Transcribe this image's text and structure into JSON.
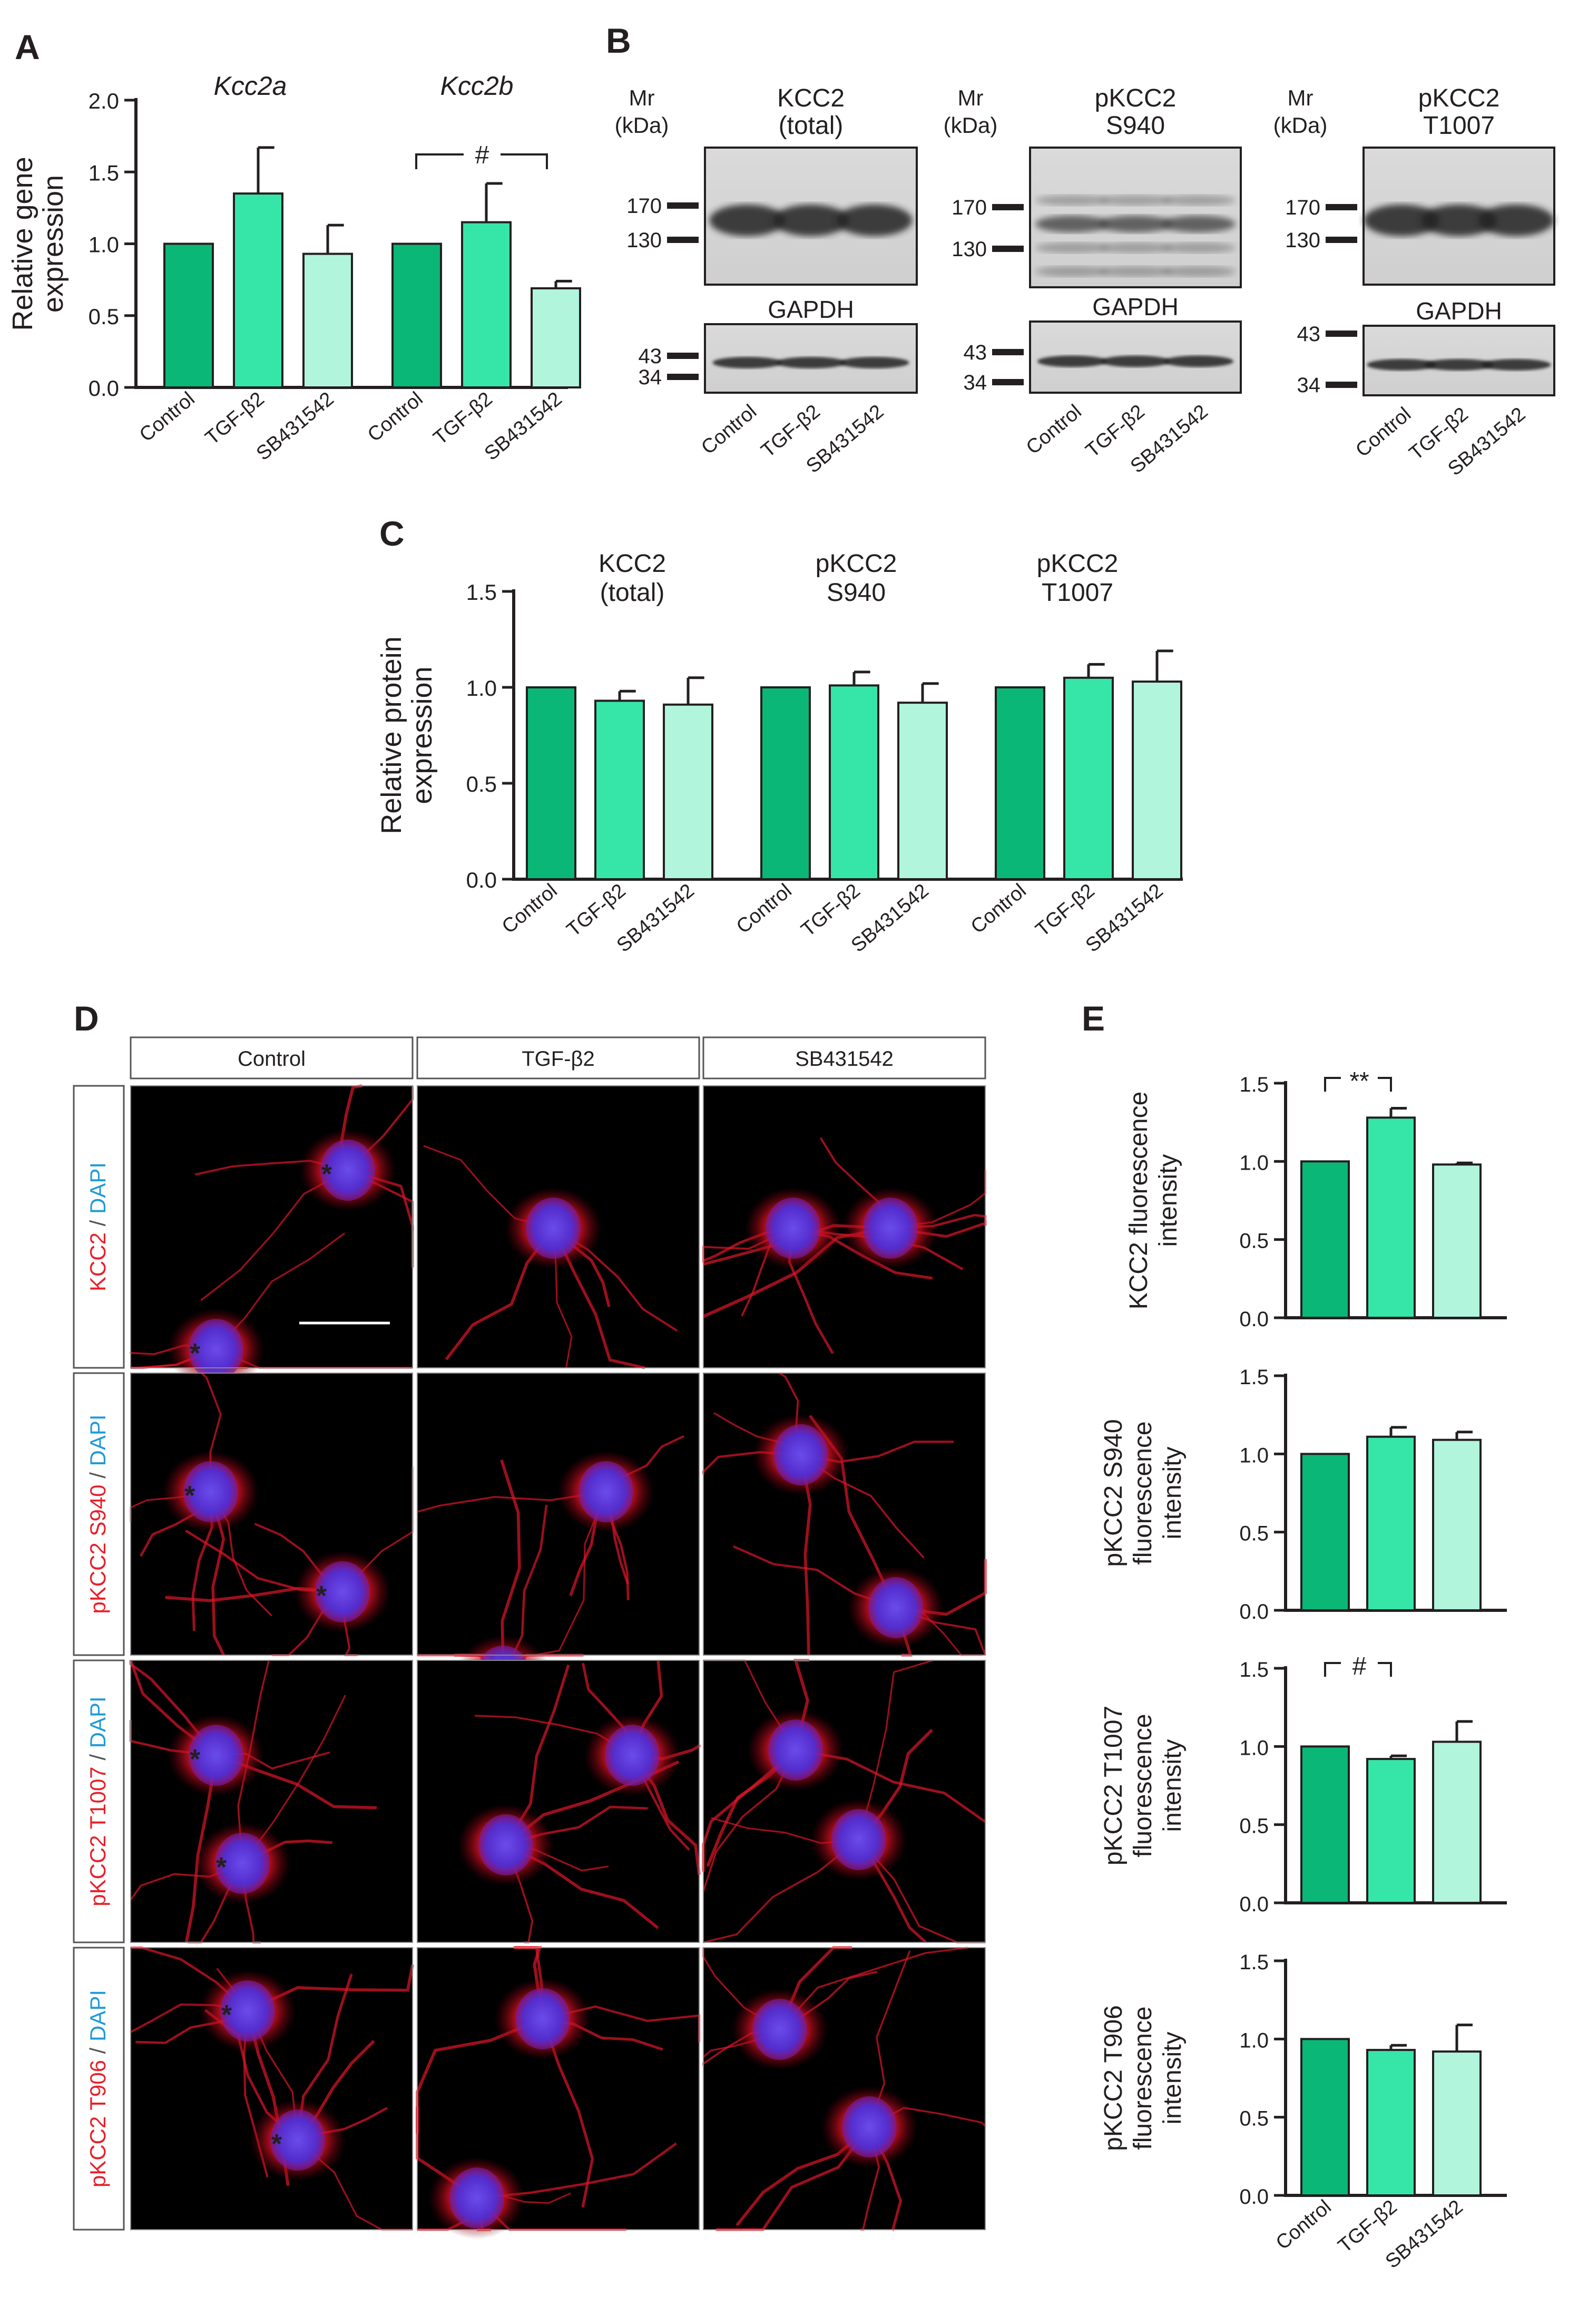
{
  "colors": {
    "control": "#0ab777",
    "tgf": "#36e6a9",
    "sb": "#b0f5dc",
    "kcc2_text": "#e8202a",
    "dapi_text": "#1f9bd7",
    "cell_red": "#e0162a",
    "cell_blue": "#3a3dff"
  },
  "panels": {
    "A": {
      "letter": "A",
      "groups": [
        "Kcc2a",
        "Kcc2b"
      ],
      "annotation": "#"
    },
    "B": {
      "letter": "B",
      "blots": [
        {
          "mr_label": [
            "Mr",
            "(kDa)"
          ],
          "title": [
            "KCC2",
            "(total)"
          ],
          "upper_markers": [
            "170",
            "130"
          ],
          "loading_label": "GAPDH",
          "lower_markers": [
            "43",
            "34"
          ],
          "lanes": [
            "Control",
            "TGF-β2",
            "SB431542"
          ]
        },
        {
          "mr_label": [
            "Mr",
            "(kDa)"
          ],
          "title": [
            "pKCC2",
            "S940"
          ],
          "upper_markers": [
            "170",
            "130"
          ],
          "loading_label": "GAPDH",
          "lower_markers": [
            "43",
            "34"
          ],
          "lanes": [
            "Control",
            "TGF-β2",
            "SB431542"
          ]
        },
        {
          "mr_label": [
            "Mr",
            "(kDa)"
          ],
          "title": [
            "pKCC2",
            "T1007"
          ],
          "upper_markers": [
            "170",
            "130"
          ],
          "loading_label": "GAPDH",
          "lower_markers": [
            "43",
            "34"
          ],
          "lanes": [
            "Control",
            "TGF-β2",
            "SB431542"
          ]
        }
      ]
    },
    "C": {
      "letter": "C",
      "group_titles": [
        [
          "KCC2",
          "(total)"
        ],
        [
          "pKCC2",
          "S940"
        ],
        [
          "pKCC2",
          "T1007"
        ]
      ]
    },
    "D": {
      "letter": "D",
      "columns": [
        "Control",
        "TGF-β2",
        "SB431542"
      ],
      "rows": [
        {
          "marker": "KCC2",
          "sep": " / ",
          "stain": "DAPI"
        },
        {
          "marker": "pKCC2 S940",
          "sep": " / ",
          "stain": "DAPI"
        },
        {
          "marker": "pKCC2 T1007",
          "sep": " / ",
          "stain": "DAPI"
        },
        {
          "marker": "pKCC2 T906",
          "sep": " / ",
          "stain": "DAPI"
        }
      ],
      "asterisk": "*"
    },
    "E": {
      "letter": "E",
      "annotations": [
        "**",
        "",
        "#",
        ""
      ]
    }
  },
  "chart_data": [
    {
      "id": "A",
      "type": "bar",
      "title": "",
      "ylabel": [
        "Relative gene",
        "expression"
      ],
      "ylim": [
        0,
        2.0
      ],
      "yticks": [
        "0.0",
        "0.5",
        "1.0",
        "1.5",
        "2.0"
      ],
      "categories": [
        "Control",
        "TGF-β2",
        "SB431542"
      ],
      "groups": [
        {
          "name": "Kcc2a",
          "values": [
            1.0,
            1.35,
            0.93
          ],
          "errors": [
            0,
            0.32,
            0.2
          ]
        },
        {
          "name": "Kcc2b",
          "values": [
            1.0,
            1.15,
            0.69
          ],
          "errors": [
            0,
            0.27,
            0.05
          ]
        }
      ]
    },
    {
      "id": "C",
      "type": "bar",
      "title": "",
      "ylabel": [
        "Relative protein",
        "expression"
      ],
      "ylim": [
        0,
        1.5
      ],
      "yticks": [
        "0.0",
        "0.5",
        "1.0",
        "1.5"
      ],
      "categories": [
        "Control",
        "TGF-β2",
        "SB431542"
      ],
      "groups": [
        {
          "name": "KCC2 (total)",
          "values": [
            1.0,
            0.93,
            0.91
          ],
          "errors": [
            0,
            0.05,
            0.14
          ]
        },
        {
          "name": "pKCC2 S940",
          "values": [
            1.0,
            1.01,
            0.92
          ],
          "errors": [
            0,
            0.07,
            0.1
          ]
        },
        {
          "name": "pKCC2 T1007",
          "values": [
            1.0,
            1.05,
            1.03
          ],
          "errors": [
            0,
            0.07,
            0.16
          ]
        }
      ]
    },
    {
      "id": "E1",
      "type": "bar",
      "title": "",
      "ylabel": [
        "KCC2 fluorescence",
        "intensity"
      ],
      "ylim": [
        0,
        1.5
      ],
      "yticks": [
        "0.0",
        "0.5",
        "1.0",
        "1.5"
      ],
      "categories": [
        "Control",
        "TGF-β2",
        "SB431542"
      ],
      "values": [
        1.0,
        1.28,
        0.98
      ],
      "errors": [
        0,
        0.06,
        0.01
      ]
    },
    {
      "id": "E2",
      "type": "bar",
      "title": "",
      "ylabel": [
        "pKCC2 S940",
        "fluorescence",
        "intensity"
      ],
      "ylim": [
        0,
        1.5
      ],
      "yticks": [
        "0.0",
        "0.5",
        "1.0",
        "1.5"
      ],
      "categories": [
        "Control",
        "TGF-β2",
        "SB431542"
      ],
      "values": [
        1.0,
        1.11,
        1.09
      ],
      "errors": [
        0,
        0.06,
        0.05
      ]
    },
    {
      "id": "E3",
      "type": "bar",
      "title": "",
      "ylabel": [
        "pKCC2 T1007",
        "fluorescence",
        "intensity"
      ],
      "ylim": [
        0,
        1.5
      ],
      "yticks": [
        "0.0",
        "0.5",
        "1.0",
        "1.5"
      ],
      "categories": [
        "Control",
        "TGF-β2",
        "SB431542"
      ],
      "values": [
        1.0,
        0.92,
        1.03
      ],
      "errors": [
        0,
        0.02,
        0.13
      ]
    },
    {
      "id": "E4",
      "type": "bar",
      "title": "",
      "ylabel": [
        "pKCC2 T906",
        "fluorescence",
        "intensity"
      ],
      "ylim": [
        0,
        1.5
      ],
      "yticks": [
        "0.0",
        "0.5",
        "1.0",
        "1.5"
      ],
      "categories": [
        "Control",
        "TGF-β2",
        "SB431542"
      ],
      "values": [
        1.0,
        0.93,
        0.92
      ],
      "errors": [
        0,
        0.03,
        0.17
      ]
    }
  ]
}
